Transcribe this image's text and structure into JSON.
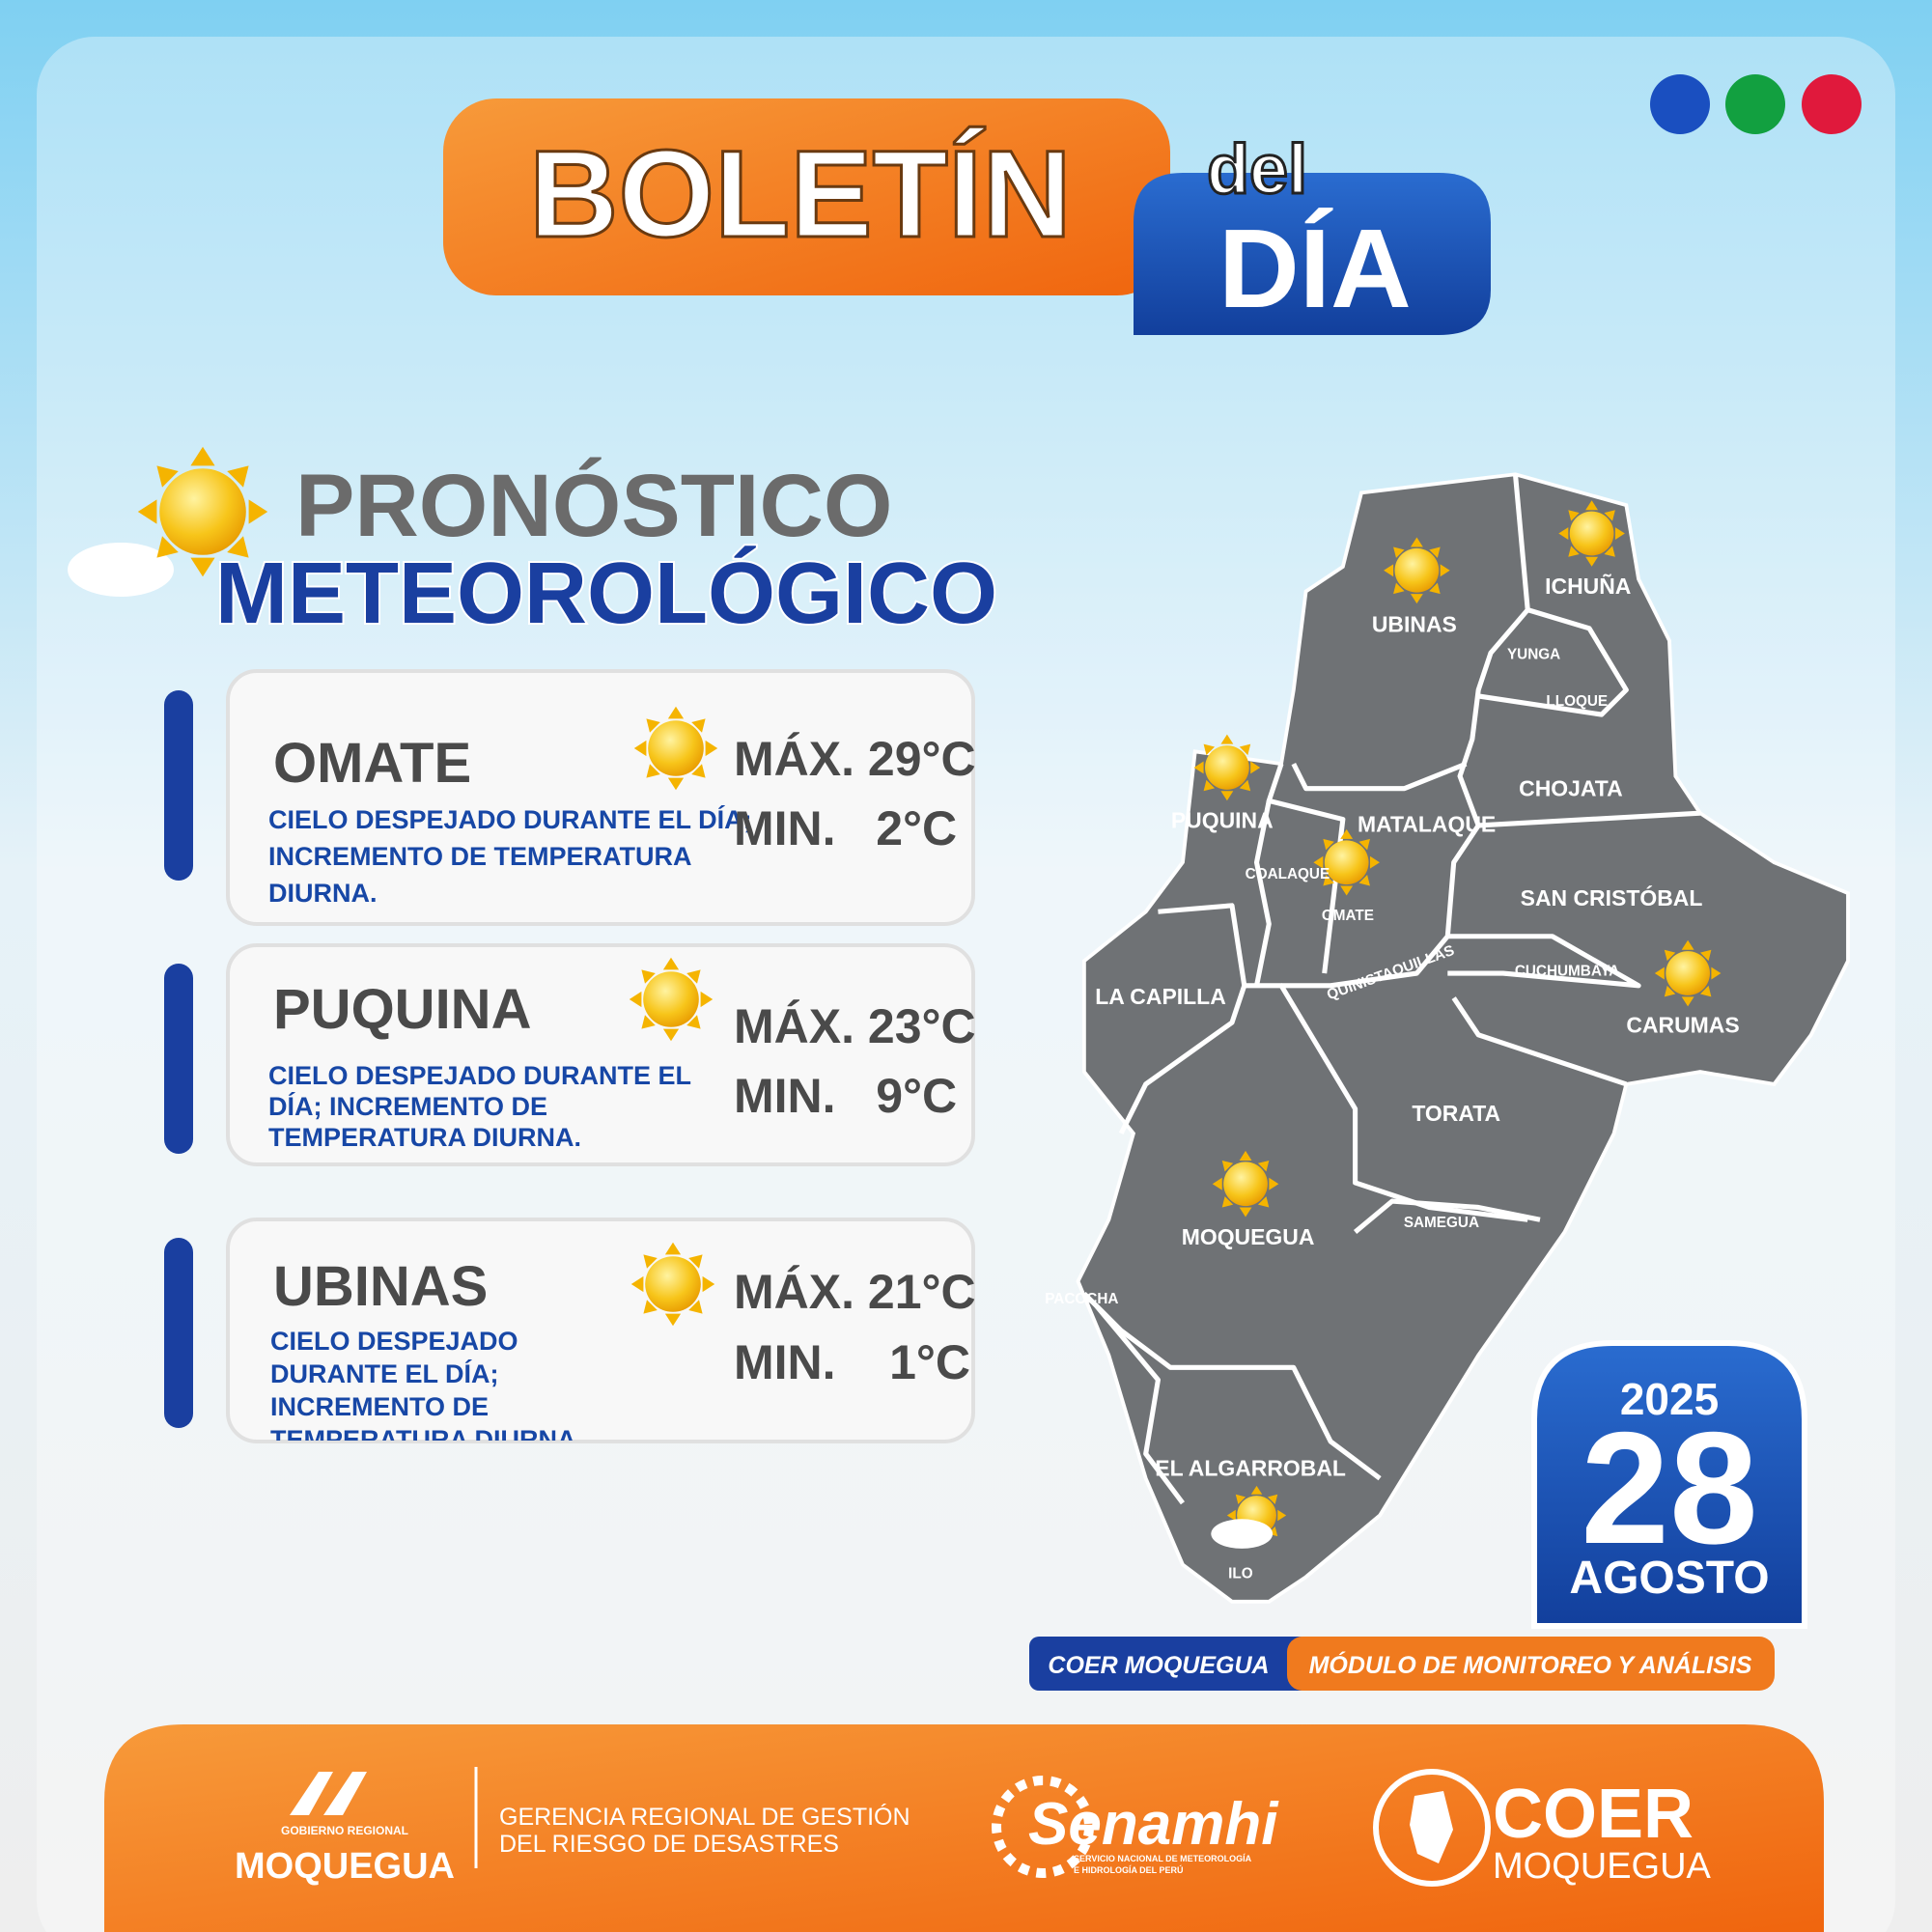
{
  "header": {
    "title": "BOLETÍN",
    "title_small": "del",
    "title_big": "DÍA"
  },
  "section": {
    "line1": "PRONÓSTICO",
    "line2": "METEOROLÓGICO"
  },
  "forecasts": [
    {
      "name": "OMATE",
      "description": "CIELO DESPEJADO DURANTE EL DÍA; INCREMENTO DE TEMPERATURA DIURNA.",
      "max": "MÁX. 29°C",
      "min": "MIN.   2°C"
    },
    {
      "name": "PUQUINA",
      "description": "CIELO DESPEJADO DURANTE EL DÍA; INCREMENTO DE TEMPERATURA DIURNA.",
      "max": "MÁX. 23°C",
      "min": "MIN.   9°C"
    },
    {
      "name": "UBINAS",
      "description": "CIELO DESPEJADO DURANTE EL DÍA; INCREMENTO DE TEMPERATURA DIURNA.",
      "max": "MÁX. 21°C",
      "min": "MIN.    1°C"
    }
  ],
  "map": {
    "labels": [
      "UBINAS",
      "ICHUÑA",
      "YUNGA",
      "LLOQUE",
      "CHOJATA",
      "PUQUINA",
      "MATALAQUE",
      "COALAQUE",
      "OMATE",
      "SAN CRISTÓBAL",
      "QUINISTAQUILLAS",
      "CUCHUMBAYA",
      "LA CAPILLA",
      "CARUMAS",
      "TORATA",
      "MOQUEGUA",
      "SAMEGUA",
      "PACOCHA",
      "EL ALGARROBAL",
      "ILO"
    ]
  },
  "date": {
    "year": "2025",
    "day": "28",
    "month": "AGOSTO"
  },
  "tags": {
    "left": "COER MOQUEGUA",
    "right": "MÓDULO DE MONITOREO Y ANÁLISIS"
  },
  "footer": {
    "gov_small": "GOBIERNO REGIONAL",
    "gov": "MOQUEGUA",
    "office_line1": "GERENCIA REGIONAL DE GESTIÓN",
    "office_line2": "DEL RIESGO DE DESASTRES",
    "senamhi": "Senamhi",
    "senamhi_sub1": "SERVICIO NACIONAL DE METEOROLOGÍA",
    "senamhi_sub2": "E HIDROLOGÍA DEL PERÚ",
    "coer": "COER",
    "coer_sub": "MOQUEGUA"
  }
}
